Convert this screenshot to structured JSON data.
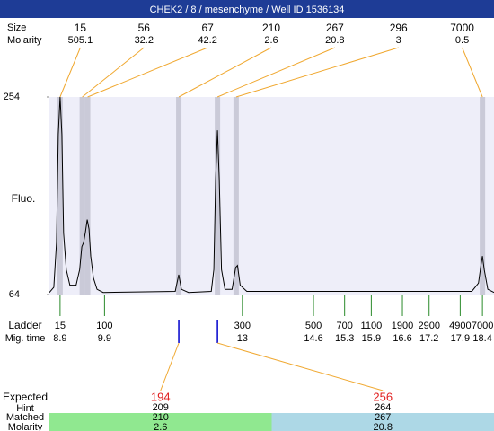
{
  "chart_data": {
    "type": "electropherogram",
    "title": "CHEK2 / 8 / mesenchyme / Well ID 1536134",
    "y_label": "Fluo.",
    "ylim": [
      64,
      254
    ],
    "yticks": [
      64,
      254
    ],
    "xlim": [
      8.66,
      18.66
    ],
    "trace": {
      "x": [
        8.66,
        8.76,
        8.82,
        8.86,
        8.9,
        8.94,
        8.98,
        9.04,
        9.12,
        9.26,
        9.34,
        9.39,
        9.43,
        9.47,
        9.51,
        9.55,
        9.59,
        9.65,
        9.73,
        9.87,
        11.49,
        11.57,
        11.63,
        11.79,
        12.3,
        12.36,
        12.4,
        12.44,
        12.48,
        12.53,
        12.61,
        12.77,
        12.85,
        12.89,
        12.95,
        13.1,
        18.16,
        18.31,
        18.37,
        18.4,
        18.44,
        18.52,
        18.66
      ],
      "values": [
        66,
        71,
        114,
        218,
        254,
        218,
        123,
        88,
        73,
        73,
        88,
        110,
        114,
        124,
        136,
        127,
        101,
        80,
        69,
        66,
        67,
        83,
        69,
        66,
        67,
        88,
        175,
        222,
        175,
        88,
        69,
        69,
        90,
        92,
        73,
        67,
        67,
        75,
        93,
        101,
        88,
        69,
        66
      ]
    },
    "peak_labels": {
      "size": "Size",
      "molarity": "Molarity"
    },
    "peaks": [
      {
        "size": 15,
        "molarity": 505.1,
        "time": 8.9
      },
      {
        "size": 56,
        "molarity": 32.2,
        "time": 9.4
      },
      {
        "size": 67,
        "molarity": 42.2,
        "time": 9.52
      },
      {
        "size": 210,
        "molarity": 2.6,
        "time": 11.57
      },
      {
        "size": 267,
        "molarity": 20.8,
        "time": 12.44
      },
      {
        "size": 296,
        "molarity": 3,
        "time": 12.86
      },
      {
        "size": 7000,
        "molarity": 0.5,
        "time": 18.4
      }
    ],
    "ladder_labels": {
      "size": "Ladder",
      "time": "Mig. time"
    },
    "ladder": {
      "sizes": [
        15,
        100,
        300,
        500,
        700,
        1100,
        1900,
        2900,
        4900,
        7000
      ],
      "times": [
        8.9,
        9.9,
        13,
        14.6,
        15.3,
        15.9,
        16.6,
        17.2,
        17.9,
        18.4
      ]
    },
    "expected_labels": {
      "expected": "Expected",
      "hint": "Hint",
      "matched": "Matched",
      "molarity": "Molarity"
    },
    "expected": [
      {
        "expected": 194,
        "hint": 209,
        "matched": 210,
        "molarity": 2.6
      },
      {
        "expected": 256,
        "hint": 264,
        "matched": 267,
        "molarity": 20.8
      }
    ]
  }
}
